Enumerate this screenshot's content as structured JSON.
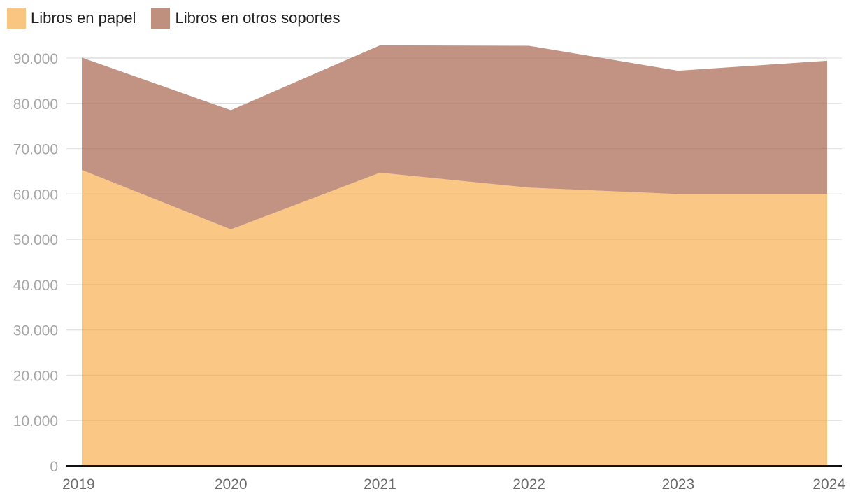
{
  "chart_data": {
    "type": "area",
    "stacked": true,
    "title": "",
    "xlabel": "",
    "ylabel": "",
    "categories": [
      "2019",
      "2020",
      "2021",
      "2022",
      "2023",
      "2024"
    ],
    "series": [
      {
        "name": "Libros en papel",
        "color": "#fac580",
        "values": [
          65300,
          52200,
          64700,
          61400,
          60000,
          60000
        ]
      },
      {
        "name": "Libros en otros soportes",
        "color": "#c0907e",
        "values": [
          24800,
          26300,
          28100,
          31300,
          27200,
          29400
        ]
      }
    ],
    "ylim": [
      0,
      90000
    ],
    "yticks": [
      0,
      10000,
      20000,
      30000,
      40000,
      50000,
      60000,
      70000,
      80000,
      90000
    ],
    "ytick_labels": [
      "0",
      "10.000",
      "20.000",
      "30.000",
      "40.000",
      "50.000",
      "60.000",
      "70.000",
      "80.000",
      "90.000"
    ],
    "grid": true,
    "legend_position": "top-left"
  }
}
